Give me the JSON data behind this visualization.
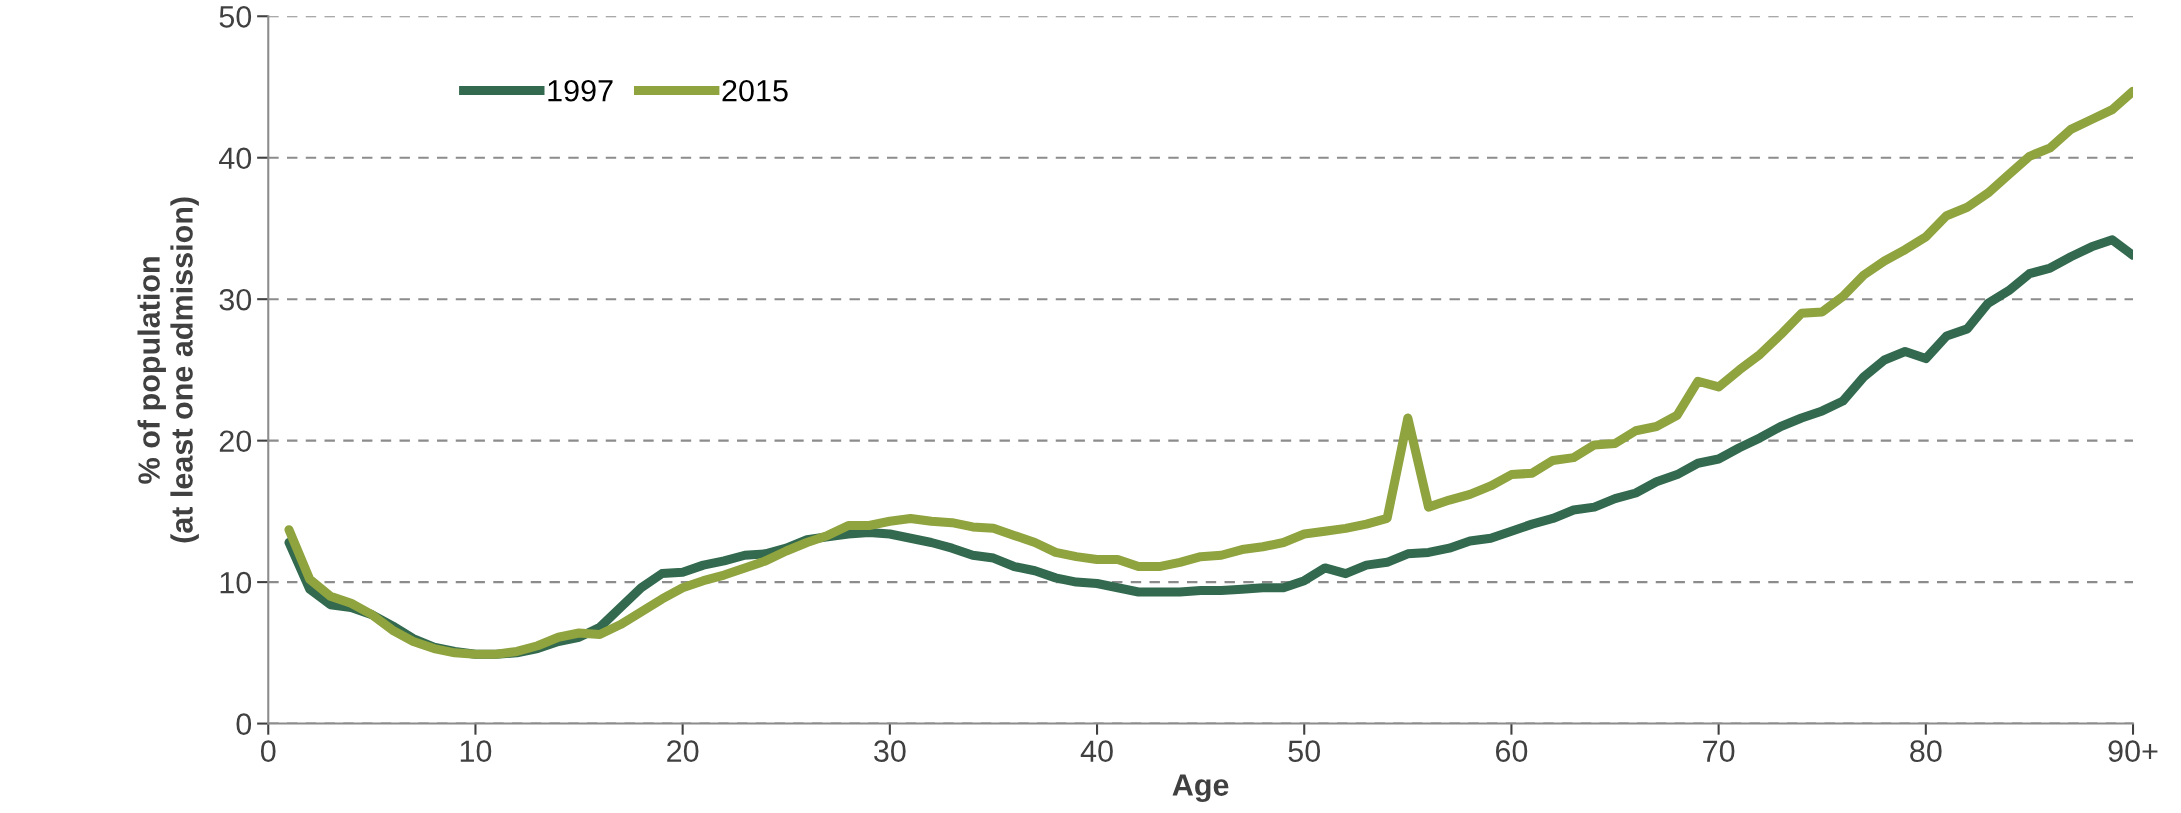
{
  "chart_data": {
    "type": "line",
    "xlabel": "Age",
    "ylabel": "% of population\n(at least one admission)",
    "x": [
      1,
      2,
      3,
      4,
      5,
      6,
      7,
      8,
      9,
      10,
      11,
      12,
      13,
      14,
      15,
      16,
      17,
      18,
      19,
      20,
      21,
      22,
      23,
      24,
      25,
      26,
      27,
      28,
      29,
      30,
      31,
      32,
      33,
      34,
      35,
      36,
      37,
      38,
      39,
      40,
      41,
      42,
      43,
      44,
      45,
      46,
      47,
      48,
      49,
      50,
      51,
      52,
      53,
      54,
      55,
      56,
      57,
      58,
      59,
      60,
      61,
      62,
      63,
      64,
      65,
      66,
      67,
      68,
      69,
      70,
      71,
      72,
      73,
      74,
      75,
      76,
      77,
      78,
      79,
      80,
      81,
      82,
      83,
      84,
      85,
      86,
      87,
      88,
      89,
      90
    ],
    "series": [
      {
        "name": "1997",
        "color": "#336a4f",
        "values": [
          12.8,
          9.5,
          8.4,
          8.2,
          7.7,
          6.9,
          6.0,
          5.4,
          5.1,
          4.9,
          4.9,
          5.0,
          5.3,
          5.8,
          6.1,
          6.8,
          8.2,
          9.6,
          10.6,
          10.7,
          11.2,
          11.5,
          11.9,
          12.0,
          12.4,
          13.0,
          13.2,
          13.4,
          13.5,
          13.4,
          13.1,
          12.8,
          12.4,
          11.9,
          11.7,
          11.1,
          10.8,
          10.3,
          10.0,
          9.9,
          9.6,
          9.3,
          9.3,
          9.3,
          9.4,
          9.4,
          9.5,
          9.6,
          9.6,
          10.1,
          11.0,
          10.6,
          11.2,
          11.4,
          12.0,
          12.1,
          12.4,
          12.9,
          13.1,
          13.6,
          14.1,
          14.5,
          15.1,
          15.3,
          15.9,
          16.3,
          17.1,
          17.6,
          18.4,
          18.7,
          19.5,
          20.2,
          21.0,
          21.6,
          22.1,
          22.8,
          24.5,
          25.7,
          26.3,
          25.8,
          27.4,
          27.9,
          29.7,
          30.6,
          31.8,
          32.2,
          33.0,
          33.7,
          34.2,
          33.1
        ]
      },
      {
        "name": "2015",
        "color": "#8fa33f",
        "values": [
          13.7,
          10.2,
          9.0,
          8.5,
          7.7,
          6.6,
          5.8,
          5.3,
          5.0,
          4.9,
          4.9,
          5.1,
          5.5,
          6.1,
          6.4,
          6.3,
          7.0,
          7.9,
          8.8,
          9.6,
          10.1,
          10.5,
          11.0,
          11.5,
          12.2,
          12.8,
          13.3,
          14.0,
          14.0,
          14.3,
          14.5,
          14.3,
          14.2,
          13.9,
          13.8,
          13.3,
          12.8,
          12.1,
          11.8,
          11.6,
          11.6,
          11.1,
          11.1,
          11.4,
          11.8,
          11.9,
          12.3,
          12.5,
          12.8,
          13.4,
          13.6,
          13.8,
          14.1,
          14.5,
          21.6,
          15.3,
          15.8,
          16.2,
          16.8,
          17.6,
          17.7,
          18.6,
          18.8,
          19.7,
          19.8,
          20.7,
          21.0,
          21.8,
          24.2,
          23.8,
          25.0,
          26.1,
          27.5,
          29.0,
          29.1,
          30.2,
          31.7,
          32.7,
          33.5,
          34.4,
          35.9,
          36.5,
          37.5,
          38.8,
          40.1,
          40.7,
          42.0,
          42.7,
          43.4,
          44.7
        ]
      }
    ],
    "xlim": [
      0,
      90
    ],
    "xticks": [
      0,
      10,
      20,
      30,
      40,
      50,
      60,
      70,
      80,
      {
        "value": 90,
        "label": "90+"
      }
    ],
    "ylim": [
      0,
      50
    ],
    "yticks": [
      0,
      10,
      20,
      30,
      40,
      50
    ],
    "grid": "y",
    "legend": "top left",
    "marker": "none",
    "line_style": "solid"
  }
}
